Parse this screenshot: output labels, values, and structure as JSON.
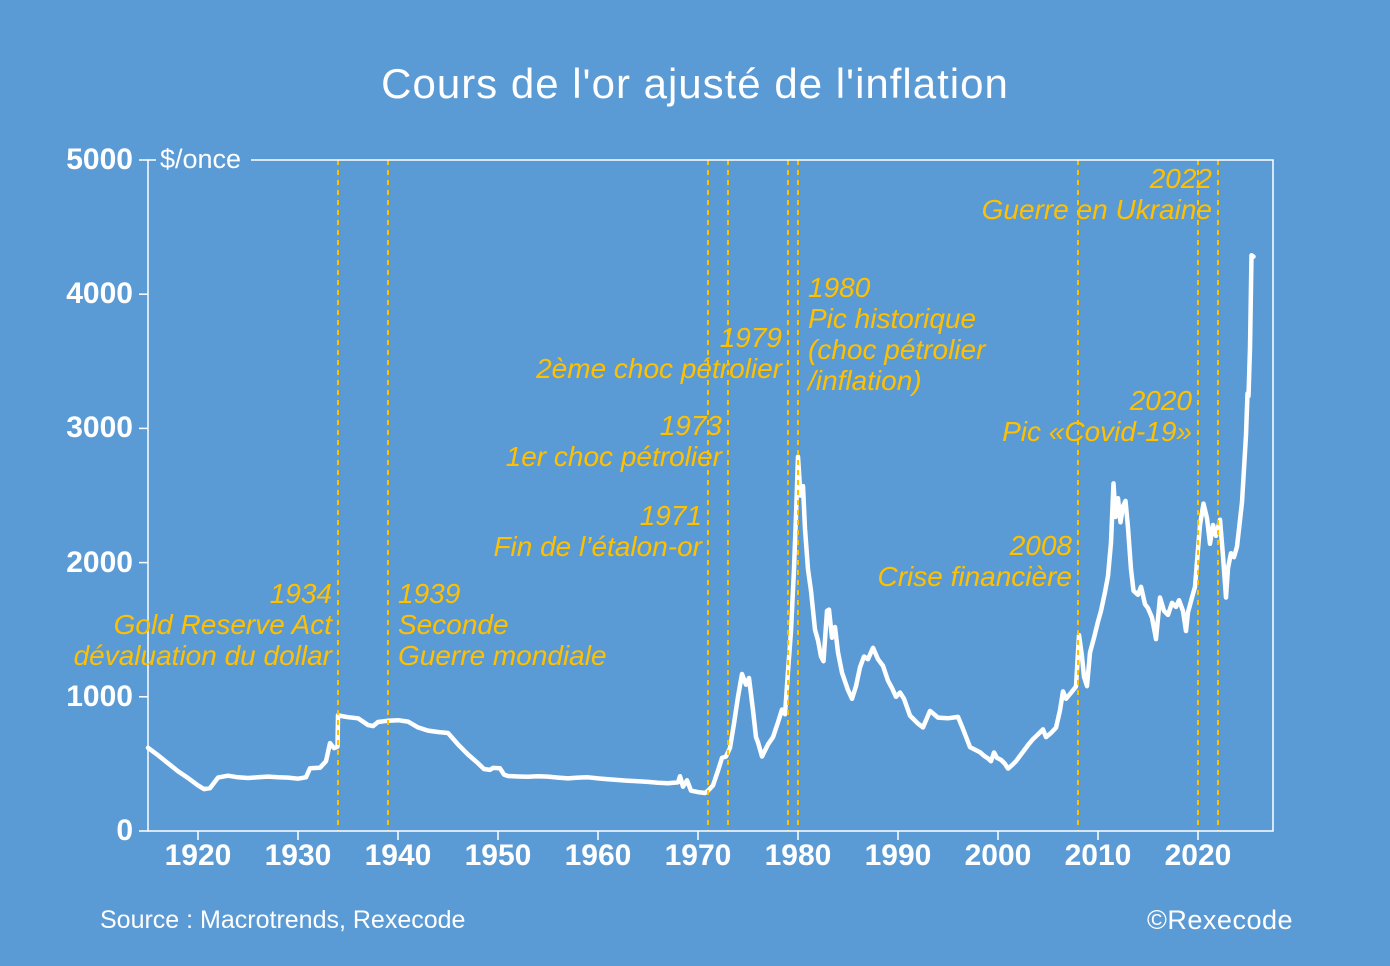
{
  "colors": {
    "background": "#5b9bd5",
    "accent_gold": "#ffc000",
    "foreground": "#ffffff"
  },
  "header": {
    "title": "Cours de l'or ajusté de l'inflation"
  },
  "footer": {
    "source": "Source : Macrotrends, Rexecode",
    "copyright": "©Rexecode"
  },
  "chart_data": {
    "type": "line",
    "title": "Cours de l'or ajusté de l'inflation",
    "ylabel": "$/once",
    "xlabel": "",
    "xlim": [
      1915,
      2027.5
    ],
    "ylim": [
      0,
      5000
    ],
    "grid": false,
    "x_ticks": [
      1920,
      1930,
      1940,
      1950,
      1960,
      1970,
      1980,
      1990,
      2000,
      2010,
      2020
    ],
    "y_ticks": [
      0,
      1000,
      2000,
      3000,
      4000,
      5000
    ],
    "series": [
      {
        "name": "Cours de l'or ajusté de l'inflation ($/once)",
        "color": "#ffffff",
        "points": [
          [
            1915,
            620
          ],
          [
            1916,
            565
          ],
          [
            1917,
            505
          ],
          [
            1918,
            445
          ],
          [
            1919,
            395
          ],
          [
            1920,
            340
          ],
          [
            1920.6,
            312
          ],
          [
            1921.2,
            320
          ],
          [
            1922,
            398
          ],
          [
            1923,
            412
          ],
          [
            1924,
            400
          ],
          [
            1925,
            395
          ],
          [
            1926,
            400
          ],
          [
            1927,
            405
          ],
          [
            1928,
            400
          ],
          [
            1929,
            398
          ],
          [
            1930,
            390
          ],
          [
            1930.8,
            400
          ],
          [
            1931.2,
            468
          ],
          [
            1932.2,
            472
          ],
          [
            1932.8,
            520
          ],
          [
            1933.2,
            655
          ],
          [
            1933.6,
            618
          ],
          [
            1933.95,
            628
          ],
          [
            1934,
            862
          ],
          [
            1934.5,
            855
          ],
          [
            1935,
            848
          ],
          [
            1936,
            840
          ],
          [
            1937,
            790
          ],
          [
            1937.5,
            782
          ],
          [
            1938,
            812
          ],
          [
            1939,
            822
          ],
          [
            1940,
            826
          ],
          [
            1941,
            815
          ],
          [
            1942,
            772
          ],
          [
            1943,
            748
          ],
          [
            1944,
            738
          ],
          [
            1945,
            730
          ],
          [
            1946,
            645
          ],
          [
            1947,
            570
          ],
          [
            1948,
            505
          ],
          [
            1948.6,
            462
          ],
          [
            1949.2,
            455
          ],
          [
            1949.5,
            470
          ],
          [
            1950.2,
            467
          ],
          [
            1950.6,
            420
          ],
          [
            1951,
            410
          ],
          [
            1952,
            406
          ],
          [
            1953,
            404
          ],
          [
            1954,
            408
          ],
          [
            1955,
            405
          ],
          [
            1956,
            398
          ],
          [
            1957,
            392
          ],
          [
            1958,
            398
          ],
          [
            1959,
            400
          ],
          [
            1960,
            392
          ],
          [
            1961,
            386
          ],
          [
            1962,
            380
          ],
          [
            1963,
            375
          ],
          [
            1964,
            370
          ],
          [
            1965,
            366
          ],
          [
            1966,
            360
          ],
          [
            1967,
            356
          ],
          [
            1968,
            362
          ],
          [
            1968.2,
            408
          ],
          [
            1968.5,
            330
          ],
          [
            1968.9,
            378
          ],
          [
            1969.3,
            300
          ],
          [
            1970,
            290
          ],
          [
            1970.7,
            283
          ],
          [
            1971,
            300
          ],
          [
            1971.5,
            340
          ],
          [
            1972,
            450
          ],
          [
            1972.4,
            545
          ],
          [
            1972.8,
            555
          ],
          [
            1973.2,
            620
          ],
          [
            1973.6,
            800
          ],
          [
            1974,
            1000
          ],
          [
            1974.4,
            1170
          ],
          [
            1974.8,
            1090
          ],
          [
            1975.1,
            1140
          ],
          [
            1975.5,
            900
          ],
          [
            1975.8,
            700
          ],
          [
            1976,
            660
          ],
          [
            1976.4,
            555
          ],
          [
            1977,
            645
          ],
          [
            1977.5,
            700
          ],
          [
            1978,
            810
          ],
          [
            1978.4,
            905
          ],
          [
            1978.7,
            870
          ],
          [
            1979,
            1190
          ],
          [
            1979.3,
            1490
          ],
          [
            1979.6,
            1950
          ],
          [
            1979.8,
            2350
          ],
          [
            1980,
            2790
          ],
          [
            1980.25,
            2500
          ],
          [
            1980.5,
            2570
          ],
          [
            1980.7,
            2250
          ],
          [
            1981,
            1950
          ],
          [
            1981.3,
            1790
          ],
          [
            1981.7,
            1500
          ],
          [
            1982,
            1420
          ],
          [
            1982.3,
            1300
          ],
          [
            1982.55,
            1265
          ],
          [
            1982.9,
            1640
          ],
          [
            1983.1,
            1650
          ],
          [
            1983.4,
            1440
          ],
          [
            1983.7,
            1520
          ],
          [
            1984,
            1330
          ],
          [
            1984.4,
            1180
          ],
          [
            1985,
            1050
          ],
          [
            1985.4,
            985
          ],
          [
            1985.8,
            1080
          ],
          [
            1986.2,
            1220
          ],
          [
            1986.6,
            1300
          ],
          [
            1987,
            1280
          ],
          [
            1987.5,
            1365
          ],
          [
            1988,
            1280
          ],
          [
            1988.5,
            1230
          ],
          [
            1989,
            1120
          ],
          [
            1989.4,
            1065
          ],
          [
            1989.8,
            1000
          ],
          [
            1990.2,
            1032
          ],
          [
            1990.6,
            985
          ],
          [
            1991.2,
            860
          ],
          [
            1992,
            800
          ],
          [
            1992.5,
            772
          ],
          [
            1993.2,
            895
          ],
          [
            1993.6,
            870
          ],
          [
            1994,
            845
          ],
          [
            1995,
            840
          ],
          [
            1996,
            850
          ],
          [
            1996.5,
            760
          ],
          [
            1997.2,
            625
          ],
          [
            1998.2,
            587
          ],
          [
            1998.6,
            560
          ],
          [
            1999,
            540
          ],
          [
            1999.3,
            520
          ],
          [
            1999.6,
            585
          ],
          [
            1999.9,
            545
          ],
          [
            2000.3,
            530
          ],
          [
            2000.7,
            500
          ],
          [
            2001,
            465
          ],
          [
            2001.4,
            490
          ],
          [
            2001.8,
            520
          ],
          [
            2002.2,
            560
          ],
          [
            2002.6,
            600
          ],
          [
            2003,
            640
          ],
          [
            2003.5,
            685
          ],
          [
            2004,
            720
          ],
          [
            2004.5,
            757
          ],
          [
            2004.8,
            700
          ],
          [
            2005.3,
            730
          ],
          [
            2005.8,
            770
          ],
          [
            2006.2,
            900
          ],
          [
            2006.5,
            1040
          ],
          [
            2006.8,
            985
          ],
          [
            2007.3,
            1030
          ],
          [
            2007.8,
            1077
          ],
          [
            2008.1,
            1460
          ],
          [
            2008.4,
            1300
          ],
          [
            2008.6,
            1150
          ],
          [
            2008.9,
            1080
          ],
          [
            2009.2,
            1330
          ],
          [
            2009.6,
            1440
          ],
          [
            2010,
            1560
          ],
          [
            2010.3,
            1640
          ],
          [
            2010.7,
            1780
          ],
          [
            2011,
            1900
          ],
          [
            2011.3,
            2150
          ],
          [
            2011.55,
            2590
          ],
          [
            2011.75,
            2340
          ],
          [
            2012,
            2480
          ],
          [
            2012.25,
            2300
          ],
          [
            2012.5,
            2420
          ],
          [
            2012.75,
            2460
          ],
          [
            2013,
            2260
          ],
          [
            2013.3,
            1950
          ],
          [
            2013.55,
            1790
          ],
          [
            2014,
            1760
          ],
          [
            2014.3,
            1820
          ],
          [
            2014.7,
            1690
          ],
          [
            2015,
            1660
          ],
          [
            2015.4,
            1590
          ],
          [
            2015.8,
            1430
          ],
          [
            2016.2,
            1740
          ],
          [
            2016.6,
            1640
          ],
          [
            2017,
            1610
          ],
          [
            2017.4,
            1700
          ],
          [
            2017.8,
            1670
          ],
          [
            2018.1,
            1720
          ],
          [
            2018.5,
            1640
          ],
          [
            2018.8,
            1490
          ],
          [
            2019,
            1630
          ],
          [
            2019.4,
            1740
          ],
          [
            2019.7,
            1820
          ],
          [
            2020,
            2100
          ],
          [
            2020.2,
            2280
          ],
          [
            2020.55,
            2440
          ],
          [
            2020.9,
            2330
          ],
          [
            2021.2,
            2140
          ],
          [
            2021.5,
            2280
          ],
          [
            2021.8,
            2200
          ],
          [
            2022,
            2260
          ],
          [
            2022.2,
            2320
          ],
          [
            2022.5,
            2050
          ],
          [
            2022.8,
            1740
          ],
          [
            2023,
            1960
          ],
          [
            2023.3,
            2070
          ],
          [
            2023.6,
            2040
          ],
          [
            2023.9,
            2120
          ],
          [
            2024.1,
            2250
          ],
          [
            2024.4,
            2450
          ],
          [
            2024.6,
            2700
          ],
          [
            2024.8,
            2950
          ],
          [
            2024.95,
            3260
          ],
          [
            2025.05,
            3240
          ],
          [
            2025.2,
            3600
          ],
          [
            2025.35,
            4290
          ],
          [
            2025.55,
            4280
          ]
        ]
      }
    ],
    "events": [
      {
        "year": 1934,
        "align": "right",
        "top": 578,
        "lines": [
          "1934",
          "Gold Reserve Act",
          "dévaluation du dollar"
        ]
      },
      {
        "year": 1939,
        "align": "left",
        "top": 578,
        "lines": [
          "1939",
          "Seconde",
          "Guerre mondiale"
        ]
      },
      {
        "year": 1971,
        "align": "right",
        "top": 500,
        "lines": [
          "1971",
          "Fin de l’étalon-or"
        ]
      },
      {
        "year": 1973,
        "align": "right",
        "top": 410,
        "lines": [
          "1973",
          "1er choc pétrolier"
        ]
      },
      {
        "year": 1979,
        "align": "right",
        "top": 322,
        "lines": [
          "1979",
          "2ème choc pétrolier"
        ]
      },
      {
        "year": 1980,
        "align": "left",
        "top": 272,
        "lines": [
          "1980",
          "Pic historique",
          "(choc pétrolier",
          "/inflation)"
        ]
      },
      {
        "year": 2008,
        "align": "right",
        "top": 530,
        "lines": [
          "2008",
          "Crise financière"
        ]
      },
      {
        "year": 2020,
        "align": "right",
        "top": 385,
        "lines": [
          "2020",
          "Pic «Covid-19»"
        ]
      },
      {
        "year": 2022,
        "align": "right",
        "top": 163,
        "lines": [
          "2022",
          "Guerre en Ukraine"
        ]
      }
    ]
  }
}
